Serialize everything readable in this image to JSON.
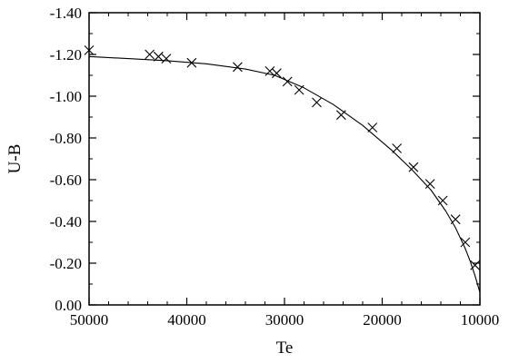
{
  "chart_data": {
    "type": "scatter",
    "title": "",
    "xlabel": "Te",
    "ylabel": "U-B",
    "x_reversed": true,
    "y_reversed": true,
    "xlim": [
      10000,
      50000
    ],
    "ylim": [
      0.0,
      -1.4
    ],
    "grid": false,
    "x_ticks": [
      50000,
      40000,
      30000,
      20000,
      10000
    ],
    "x_tick_labels": [
      "50000",
      "40000",
      "30000",
      "20000",
      "10000"
    ],
    "y_ticks": [
      0.0,
      -0.2,
      -0.4,
      -0.6,
      -0.8,
      -1.0,
      -1.2,
      -1.4
    ],
    "y_tick_labels": [
      "0.00",
      "-0.20",
      "-0.40",
      "-0.60",
      "-0.80",
      "-1.00",
      "-1.20",
      "-1.40"
    ],
    "series": [
      {
        "kind": "markers",
        "marker": "x",
        "x": [
          50000,
          43800,
          42900,
          42100,
          39500,
          34800,
          31500,
          30800,
          29700,
          28500,
          26700,
          24200,
          21000,
          18500,
          16800,
          15100,
          13800,
          12500,
          11500,
          10500
        ],
        "y": [
          -1.22,
          -1.2,
          -1.19,
          -1.18,
          -1.16,
          -1.14,
          -1.12,
          -1.11,
          -1.07,
          -1.03,
          -0.97,
          -0.91,
          -0.85,
          -0.75,
          -0.66,
          -0.58,
          -0.5,
          -0.41,
          -0.3,
          -0.19
        ]
      },
      {
        "kind": "line",
        "x": [
          50000,
          46000,
          42000,
          38000,
          34000,
          31000,
          28000,
          25000,
          22000,
          19000,
          17000,
          15000,
          13500,
          12500,
          11500,
          11000,
          10500,
          10000
        ],
        "y": [
          -1.19,
          -1.18,
          -1.17,
          -1.155,
          -1.13,
          -1.1,
          -1.04,
          -0.96,
          -0.86,
          -0.74,
          -0.65,
          -0.55,
          -0.45,
          -0.37,
          -0.27,
          -0.21,
          -0.14,
          -0.06
        ]
      }
    ]
  }
}
